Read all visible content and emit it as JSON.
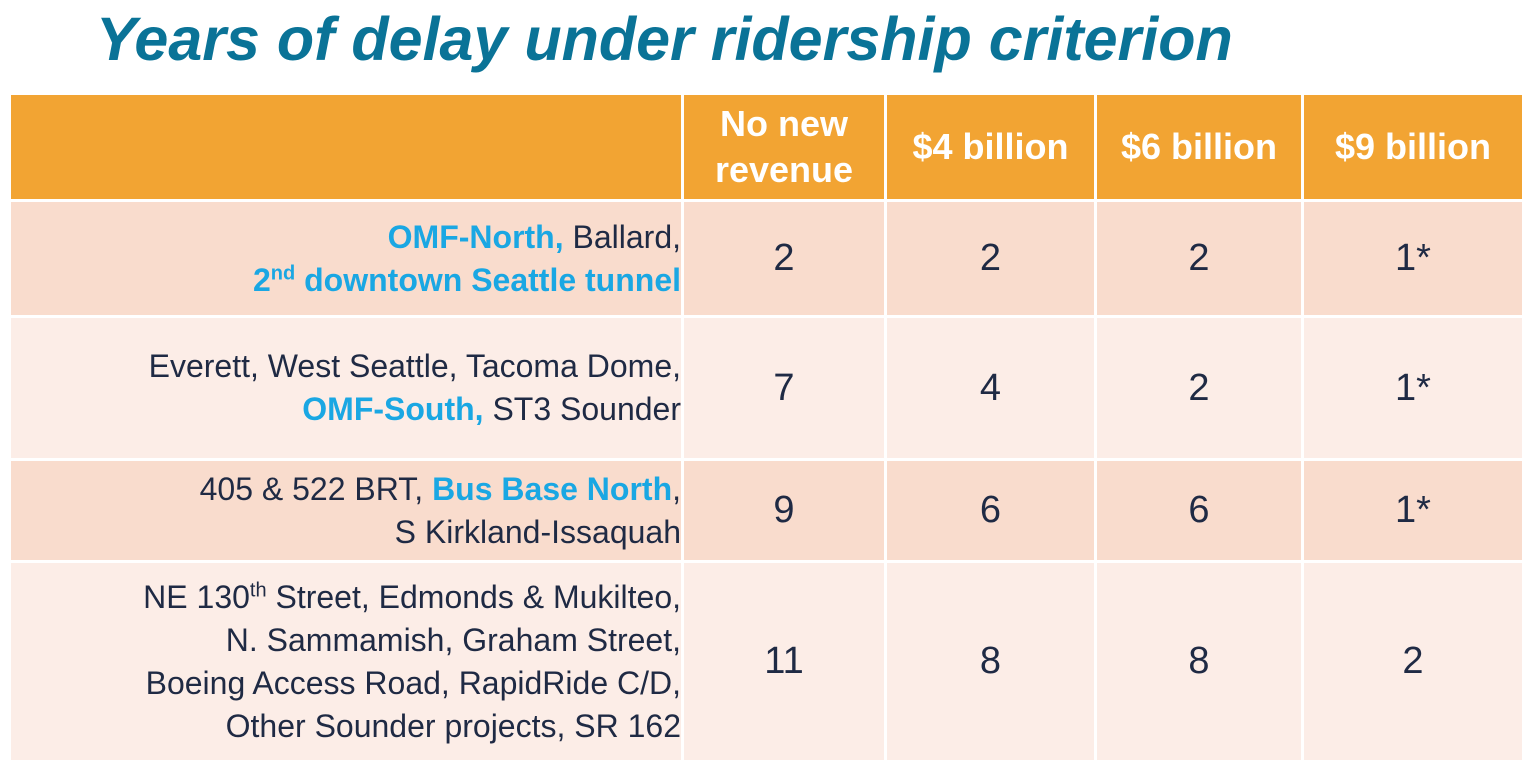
{
  "title": "Years of delay under ridership criterion",
  "colors": {
    "title": "#0a7397",
    "header_bg": "#f2a433",
    "row_dark": "#f9dccd",
    "row_light": "#fcede7",
    "highlight": "#1aa7e3",
    "body_text": "#1f2a44"
  },
  "table": {
    "headers": [
      "",
      "No new revenue",
      "$4 billion",
      "$6 billion",
      "$9 billion"
    ],
    "rows": [
      {
        "desc": {
          "l1_hl": "OMF-North,",
          "l1_rest": " Ballard,",
          "l2_num": "2",
          "l2_sup": "nd",
          "l2_hl": " downtown Seattle tunnel"
        },
        "values": [
          "2",
          "2",
          "2",
          "1*"
        ]
      },
      {
        "desc": {
          "l1": "Everett, West Seattle, Tacoma Dome,",
          "l2_hl": "OMF-South,",
          "l2_rest": " ST3 Sounder"
        },
        "values": [
          "7",
          "4",
          "2",
          "1*"
        ]
      },
      {
        "desc": {
          "l1_pre": "405 & 522 BRT, ",
          "l1_hl": "Bus Base North",
          "l1_post": ",",
          "l2": "S Kirkland-Issaquah"
        },
        "values": [
          "9",
          "6",
          "6",
          "1*"
        ]
      },
      {
        "desc": {
          "l1_pre": "NE 130",
          "l1_sup": "th",
          "l1_post": " Street, Edmonds & Mukilteo,",
          "l2": "N. Sammamish, Graham Street,",
          "l3": "Boeing Access Road, RapidRide C/D,",
          "l4": "Other Sounder projects, SR 162"
        },
        "values": [
          "11",
          "8",
          "8",
          "2"
        ]
      }
    ]
  }
}
